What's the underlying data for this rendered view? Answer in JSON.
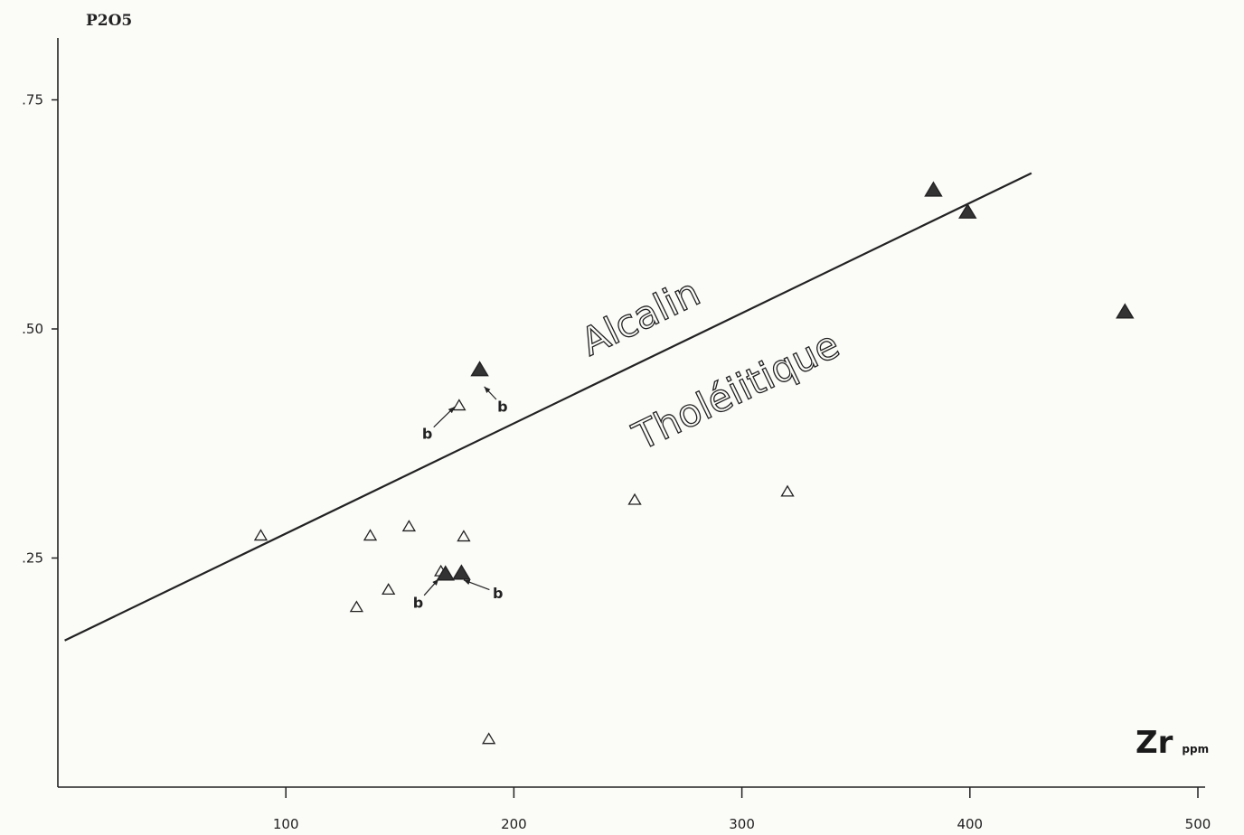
{
  "chart_data": {
    "type": "scatter",
    "ylabel": "P2O5",
    "xlabel": "Zr",
    "xlabel_unit": "ppm",
    "xlim": [
      0,
      500
    ],
    "ylim": [
      0,
      0.85
    ],
    "x_ticks": [
      100,
      200,
      300,
      400,
      500
    ],
    "x_tick_labels": [
      "100",
      "200",
      "300",
      "400",
      "500"
    ],
    "y_ticks": [
      0.25,
      0.5,
      0.75
    ],
    "y_tick_labels": [
      ".25",
      ".50",
      ".75"
    ],
    "grid": false,
    "boundary_line": {
      "x": [
        3,
        427
      ],
      "y": [
        0.16,
        0.67
      ]
    },
    "regions": [
      {
        "label": "Alcalin",
        "x": 258,
        "y": 0.5
      },
      {
        "label": "Tholéiitique",
        "x": 300,
        "y": 0.42
      }
    ],
    "series": [
      {
        "marker": "open-triangle",
        "points": [
          [
            89,
            0.274
          ],
          [
            137,
            0.274
          ],
          [
            154,
            0.284
          ],
          [
            178,
            0.273
          ],
          [
            176,
            0.416
          ],
          [
            131,
            0.196
          ],
          [
            145,
            0.215
          ],
          [
            168,
            0.235
          ],
          [
            253,
            0.313
          ],
          [
            320,
            0.322
          ],
          [
            189,
            0.052
          ]
        ]
      },
      {
        "marker": "filled-triangle",
        "points": [
          [
            185,
            0.455
          ],
          [
            170,
            0.232
          ],
          [
            177,
            0.233
          ],
          [
            384,
            0.651
          ],
          [
            399,
            0.627
          ],
          [
            468,
            0.518
          ]
        ]
      }
    ],
    "annotations": [
      {
        "text": "b",
        "x": 162,
        "y": 0.38,
        "arrow_to": [
          174,
          0.415
        ]
      },
      {
        "text": "b",
        "x": 195,
        "y": 0.41,
        "arrow_to": [
          187,
          0.437
        ]
      },
      {
        "text": "b",
        "x": 158,
        "y": 0.196,
        "arrow_to": [
          167,
          0.227
        ]
      },
      {
        "text": "b",
        "x": 193,
        "y": 0.206,
        "arrow_to": [
          178,
          0.226
        ]
      }
    ]
  }
}
